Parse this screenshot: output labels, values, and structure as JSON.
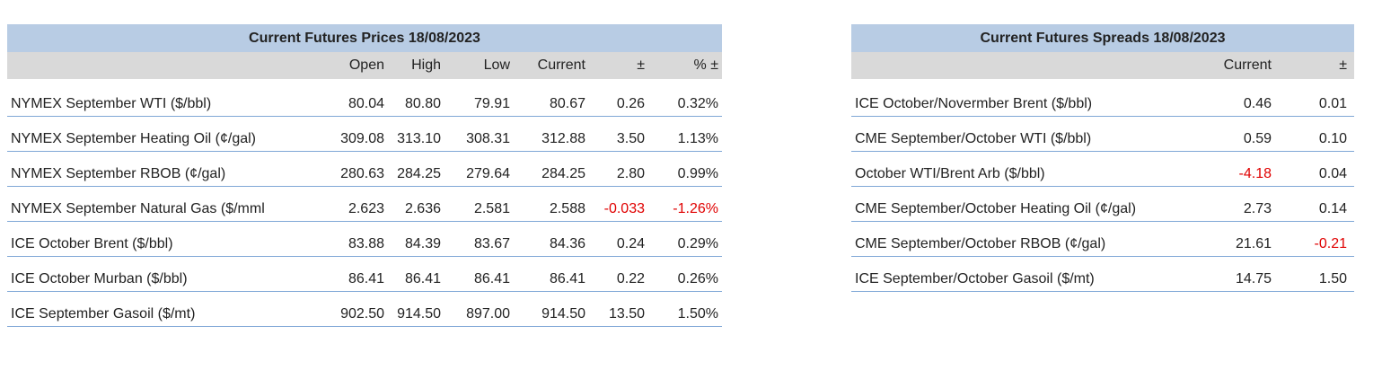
{
  "prices": {
    "title": "Current Futures Prices 18/08/2023",
    "columns": [
      "Open",
      "High",
      "Low",
      "Current",
      "±",
      "% ±"
    ],
    "rows": [
      [
        "NYMEX September WTI ($/bbl)",
        "80.04",
        "80.80",
        "79.91",
        "80.67",
        "0.26",
        "0.32%"
      ],
      [
        "NYMEX September Heating Oil (¢/gal)",
        "309.08",
        "313.10",
        "308.31",
        "312.88",
        "3.50",
        "1.13%"
      ],
      [
        "NYMEX September RBOB (¢/gal)",
        "280.63",
        "284.25",
        "279.64",
        "284.25",
        "2.80",
        "0.99%"
      ],
      [
        "NYMEX September Natural Gas ($/mml",
        "2.623",
        "2.636",
        "2.581",
        "2.588",
        "-0.033",
        "-1.26%"
      ],
      [
        "ICE October Brent ($/bbl)",
        "83.88",
        "84.39",
        "83.67",
        "84.36",
        "0.24",
        "0.29%"
      ],
      [
        "ICE October Murban ($/bbl)",
        "86.41",
        "86.41",
        "86.41",
        "86.41",
        "0.22",
        "0.26%"
      ],
      [
        "ICE September Gasoil ($/mt)",
        "902.50",
        "914.50",
        "897.00",
        "914.50",
        "13.50",
        "1.50%"
      ]
    ]
  },
  "spreads": {
    "title": "Current Futures Spreads 18/08/2023",
    "columns": [
      "Current",
      "±"
    ],
    "rows": [
      [
        "ICE October/Novermber Brent ($/bbl)",
        "0.46",
        "0.01"
      ],
      [
        "CME September/October WTI ($/bbl)",
        "0.59",
        "0.10"
      ],
      [
        "October WTI/Brent Arb ($/bbl)",
        "-4.18",
        "0.04"
      ],
      [
        "CME September/October Heating Oil (¢/gal)",
        "2.73",
        "0.14"
      ],
      [
        "CME September/October RBOB (¢/gal)",
        "21.61",
        "-0.21"
      ],
      [
        "ICE September/October Gasoil ($/mt)",
        "14.75",
        "1.50"
      ]
    ]
  }
}
